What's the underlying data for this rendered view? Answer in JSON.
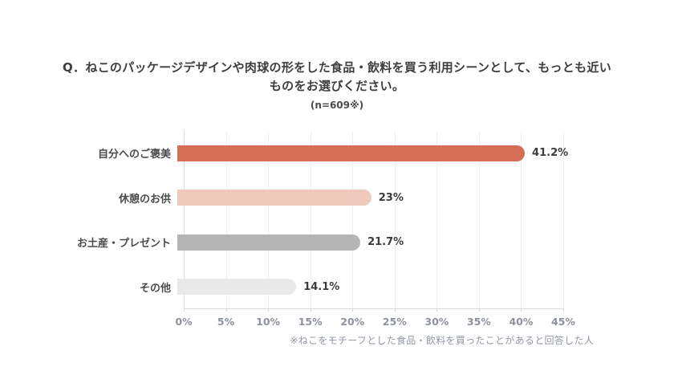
{
  "colors": {
    "accent": "#d66e55",
    "grid": "#f2eeee",
    "axis": "#d9d9d9",
    "title_text": "#3e3e40",
    "category_text": "#4c4c4e",
    "value_text": "#3b3b3d",
    "tick_text": "#8d929b",
    "footnote_text": "#9198a3",
    "background": "#ffffff"
  },
  "chart_data": {
    "type": "bar",
    "orientation": "horizontal",
    "title_line1": "Q．ねこのパッケージデザインや肉球の形をした食品・飲料を買う利用シーンとして、もっとも近い",
    "title_line2": "ものをお選びください。",
    "subtitle": "(n=609※)",
    "categories": [
      "自分へのご褒美",
      "休憩のお供",
      "お土産・プレゼント",
      "その他"
    ],
    "values": [
      41.2,
      23,
      21.7,
      14.1
    ],
    "value_labels": [
      "41.2%",
      "23%",
      "21.7%",
      "14.1%"
    ],
    "bar_colors": [
      "#d66e55",
      "#eec9bc",
      "#b5b5b5",
      "#e9e9e9"
    ],
    "xlim": [
      0,
      45
    ],
    "x_ticks": [
      "0%",
      "5%",
      "10%",
      "15%",
      "20%",
      "25%",
      "30%",
      "35%",
      "40%",
      "45%"
    ],
    "grid": true,
    "legend": false,
    "footnote": "※ねこをモチーフとした食品・飲料を買ったことがあると回答した人"
  }
}
